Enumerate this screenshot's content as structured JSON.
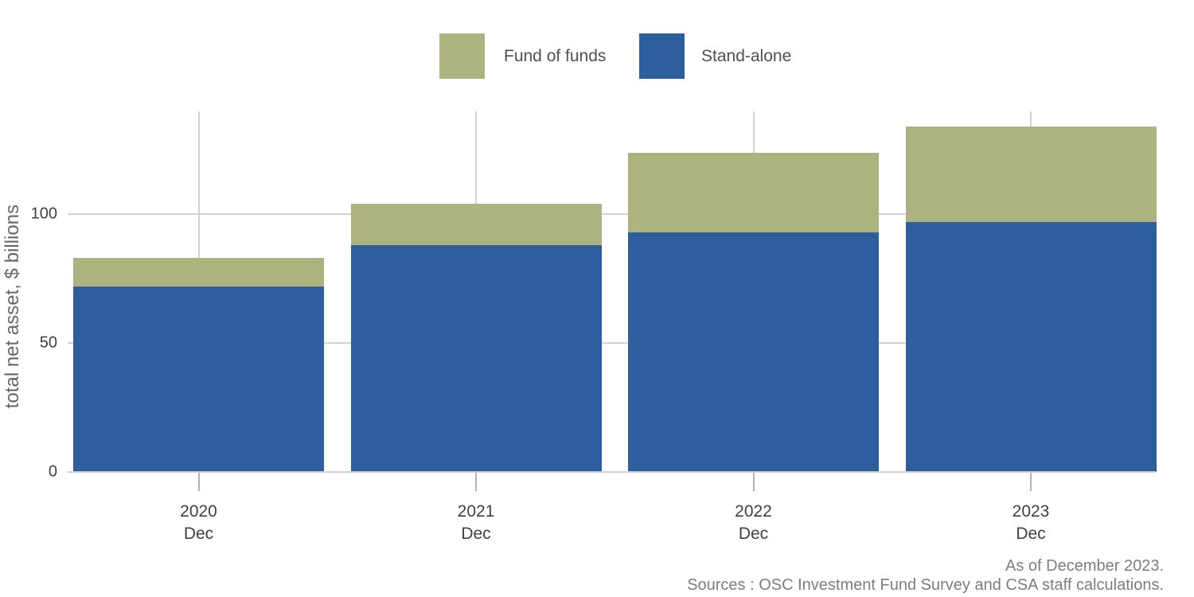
{
  "chart_data": {
    "type": "bar",
    "stacked": true,
    "categories": [
      "2020",
      "2021",
      "2022",
      "2023"
    ],
    "category_sublabel": "Dec",
    "series": [
      {
        "name": "Stand-alone",
        "color": "#2d5f9f",
        "values": [
          72,
          88,
          93,
          97
        ]
      },
      {
        "name": "Fund of funds",
        "color": "#acb37f",
        "values": [
          11,
          16,
          31,
          37
        ]
      }
    ],
    "totals": [
      83,
      104,
      124,
      134
    ],
    "title": "",
    "xlabel": "",
    "ylabel": "total net asset, $ billions",
    "yticks": [
      0,
      50,
      100
    ],
    "ylim": [
      0,
      140
    ],
    "grid": "on",
    "legend_position": "top"
  },
  "legend": {
    "items": [
      {
        "label": "Fund of funds",
        "color": "#acb37f"
      },
      {
        "label": "Stand-alone",
        "color": "#2d5f9f"
      }
    ]
  },
  "caption": {
    "line1": "As of December 2023.",
    "line2": "Sources : OSC Investment Fund Survey and CSA staff calculations."
  }
}
